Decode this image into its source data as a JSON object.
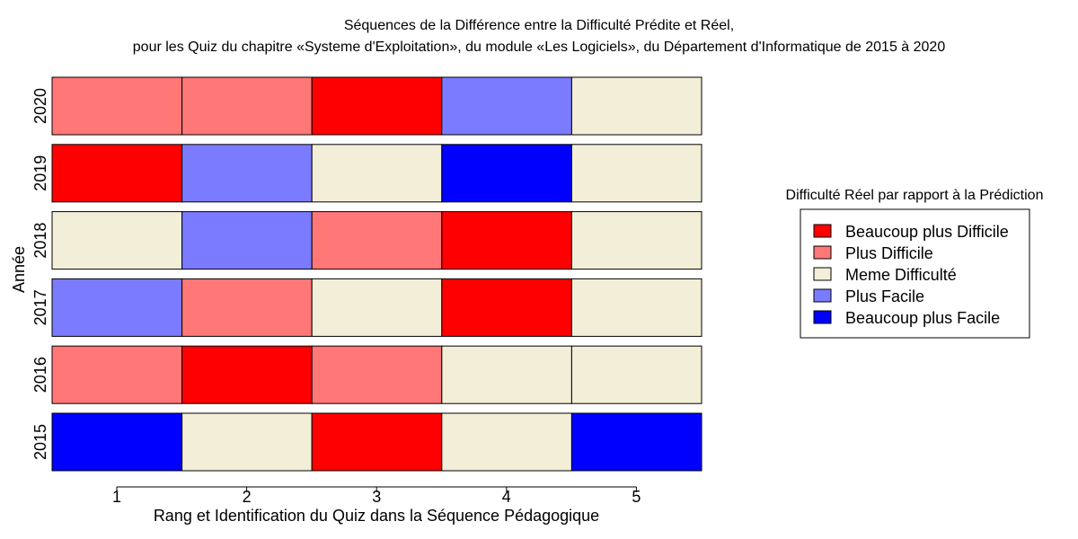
{
  "chart_data": {
    "type": "heatmap",
    "title": "Séquences de la Différence entre la Difficulté Prédite et Réel,",
    "subtitle": "pour les Quiz du chapitre «Systeme d'Exploitation», du module «Les Logiciels», du Département d'Informatique de 2015 à 2020",
    "xlabel": "Rang et Identification du Quiz dans la Séquence Pédagogique",
    "ylabel": "Année",
    "x": [
      1,
      2,
      3,
      4,
      5
    ],
    "x_tick_labels": [
      "1",
      "2",
      "3",
      "4",
      "5"
    ],
    "grid": false,
    "legend": {
      "title": "Difficulté Réel par rapport à la Prédiction",
      "placement": "right",
      "entries": [
        {
          "key": "bpd",
          "label": "Beaucoup plus Difficile",
          "color": "#FF0000"
        },
        {
          "key": "pd",
          "label": "Plus Difficile",
          "color": "#FF7777"
        },
        {
          "key": "md",
          "label": "Meme Difficulté",
          "color": "#F3EED8"
        },
        {
          "key": "pf",
          "label": "Plus Facile",
          "color": "#7B7BFF"
        },
        {
          "key": "bpf",
          "label": "Beaucoup plus Facile",
          "color": "#0000FF"
        }
      ]
    },
    "rows": [
      {
        "year": "2020",
        "values": [
          "pd",
          "pd",
          "bpd",
          "pf",
          "md"
        ]
      },
      {
        "year": "2019",
        "values": [
          "bpd",
          "pf",
          "md",
          "bpf",
          "md"
        ]
      },
      {
        "year": "2018",
        "values": [
          "md",
          "pf",
          "pd",
          "bpd",
          "md"
        ]
      },
      {
        "year": "2017",
        "values": [
          "pf",
          "pd",
          "md",
          "bpd",
          "md"
        ]
      },
      {
        "year": "2016",
        "values": [
          "pd",
          "bpd",
          "pd",
          "md",
          "md"
        ]
      },
      {
        "year": "2015",
        "values": [
          "bpf",
          "md",
          "bpd",
          "md",
          "bpf"
        ]
      }
    ]
  }
}
